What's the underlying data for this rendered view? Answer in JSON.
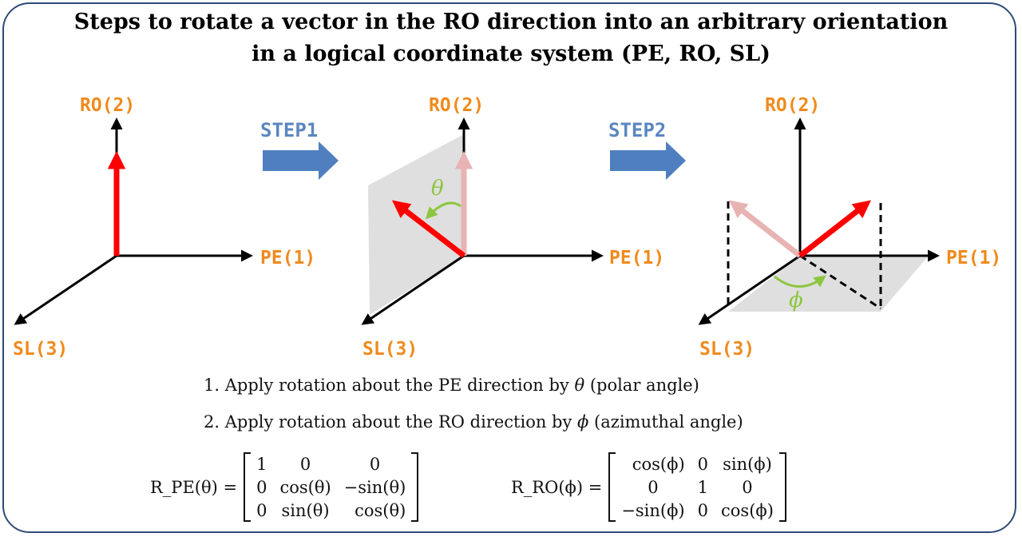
{
  "title": {
    "line1": "Steps to rotate a vector in the RO direction into an arbitrary orientation",
    "line2": "in a logical coordinate system (PE, RO, SL)"
  },
  "axes": {
    "ro": "RO(2)",
    "pe": "PE(1)",
    "sl": "SL(3)"
  },
  "steps": [
    "STEP1",
    "STEP2"
  ],
  "angles": {
    "theta": "θ",
    "phi": "ϕ"
  },
  "instructions": [
    {
      "prefix": "1. Apply rotation about the PE direction by ",
      "var": "θ",
      "suffix": " (polar angle)"
    },
    {
      "prefix": "2. Apply rotation about the RO direction by ",
      "var": "ϕ",
      "suffix": " (azimuthal angle)"
    }
  ],
  "matrices": {
    "pe": {
      "label": "R_PE(θ) =",
      "rows": [
        [
          "1",
          "0",
          "0"
        ],
        [
          "0",
          "cos(θ)",
          "−sin(θ)"
        ],
        [
          "0",
          "sin(θ)",
          "cos(θ)"
        ]
      ]
    },
    "ro": {
      "label": "R_RO(ϕ) =",
      "rows": [
        [
          "cos(ϕ)",
          "0",
          "sin(ϕ)"
        ],
        [
          "0",
          "1",
          "0"
        ],
        [
          "−sin(ϕ)",
          "0",
          "cos(ϕ)"
        ]
      ]
    }
  },
  "colors": {
    "frame": "#2e4a78",
    "axis_label": "#f08a1c",
    "step_arrow": "#4f7fbf",
    "vector": "#ff0000",
    "vector_faded": "#e8b3b3",
    "angle": "#8cc63e",
    "plane": "#d9d9d9"
  }
}
